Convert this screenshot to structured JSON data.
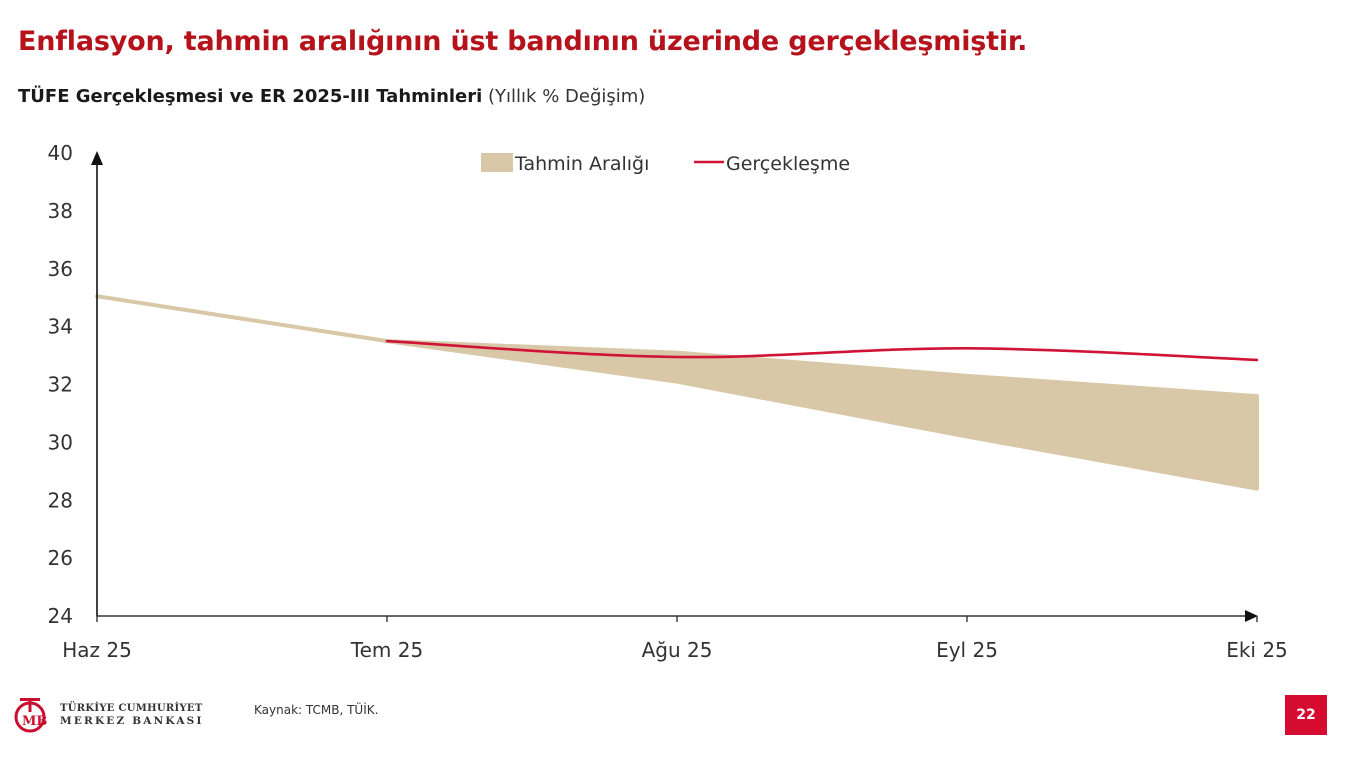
{
  "slide": {
    "title": "Enflasyon, tahmin aralığının üst bandının üzerinde gerçekleşmiştir.",
    "chart_title_bold": "TÜFE Gerçekleşmesi ve ER 2025-III Tahminleri",
    "chart_title_light": " (Yıllık % Değişim)",
    "page_number": "22"
  },
  "footer": {
    "logo_mark": "TCMB",
    "logo_line1": "TÜRKİYE CUMHURİYET",
    "logo_line2": "MERKEZ BANKASI",
    "source": "Kaynak: TCMB, TÜİK."
  },
  "colors": {
    "title_red": "#b5121b",
    "band": "#d8c8a8",
    "actual_line": "#d01437",
    "badge": "#d50c2f"
  },
  "chart_data": {
    "type": "area",
    "title": "TÜFE Gerçekleşmesi ve ER 2025-III Tahminleri",
    "subtitle": "(Yıllık % Değişim)",
    "xlabel": "",
    "ylabel": "",
    "categories": [
      "Haz 25",
      "Tem 25",
      "Ağu 25",
      "Eyl 25",
      "Eki 25"
    ],
    "ylim": [
      24,
      40
    ],
    "yticks": [
      24,
      26,
      28,
      30,
      32,
      34,
      36,
      38,
      40
    ],
    "grid": false,
    "legend_position": "top-center",
    "legend": [
      "Tahmin Aralığı",
      "Gerçekleşme"
    ],
    "series": [
      {
        "name": "Tahmin Aralığı (üst)",
        "kind": "band-upper",
        "values": [
          35.05,
          33.5,
          33.1,
          32.3,
          31.6
        ]
      },
      {
        "name": "Tahmin Aralığı (alt)",
        "kind": "band-lower",
        "values": [
          35.05,
          33.5,
          32.1,
          30.2,
          28.4
        ]
      },
      {
        "name": "Gerçekleşme",
        "kind": "line",
        "values": [
          null,
          33.5,
          32.95,
          33.25,
          32.85
        ]
      }
    ]
  }
}
